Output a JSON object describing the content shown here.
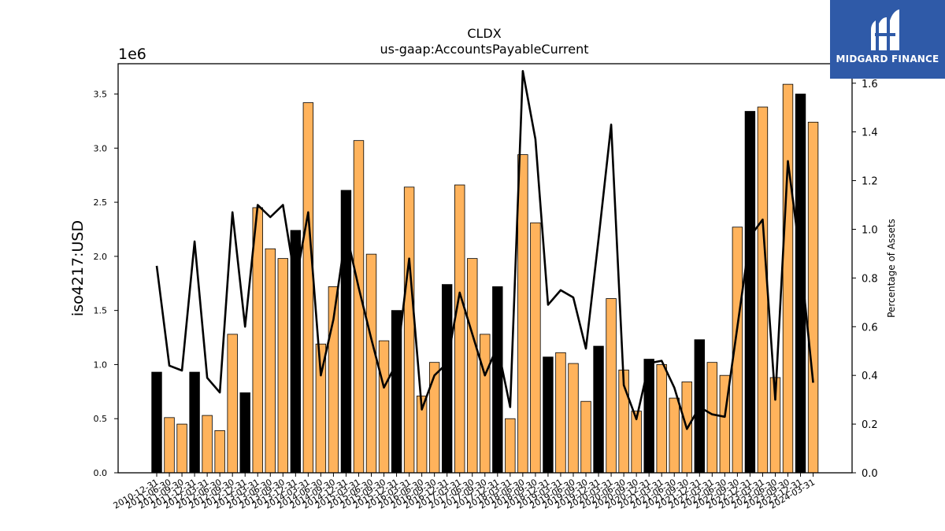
{
  "chart_data": {
    "type": "bar",
    "title": "CLDX",
    "subtitle": "us-gaap:AccountsPayableCurrent",
    "ylabel": "iso4217:USD",
    "y_offset_label": "1e6",
    "y2label": "Percentage of Assets",
    "ylim": [
      0,
      3.78
    ],
    "y2lim": [
      0,
      1.68
    ],
    "yticks": [
      "0.0",
      "0.5",
      "1.0",
      "1.5",
      "2.0",
      "2.5",
      "3.0",
      "3.5"
    ],
    "y2ticks": [
      "0.0",
      "0.2",
      "0.4",
      "0.6",
      "0.8",
      "1.0",
      "1.2",
      "1.4",
      "1.6"
    ],
    "grid": false,
    "categories": [
      "2010-12-31",
      "2011-06-30",
      "2011-09-30",
      "2011-12-31",
      "2012-03-31",
      "2012-06-30",
      "2012-09-30",
      "2012-12-31",
      "2013-03-31",
      "2013-06-30",
      "2013-09-30",
      "2013-12-31",
      "2014-03-31",
      "2014-06-30",
      "2014-09-30",
      "2014-12-31",
      "2015-03-31",
      "2015-06-30",
      "2015-09-30",
      "2015-12-31",
      "2016-03-31",
      "2016-06-30",
      "2016-09-30",
      "2016-12-31",
      "2017-03-31",
      "2017-06-30",
      "2017-09-30",
      "2017-12-31",
      "2018-03-31",
      "2018-06-30",
      "2018-09-30",
      "2018-12-31",
      "2019-03-31",
      "2019-06-30",
      "2019-09-30",
      "2019-12-31",
      "2020-03-31",
      "2020-06-30",
      "2020-09-30",
      "2020-12-31",
      "2021-03-31",
      "2021-06-30",
      "2021-09-30",
      "2021-12-31",
      "2022-03-31",
      "2022-06-30",
      "2022-09-30",
      "2022-12-31",
      "2023-03-31",
      "2023-06-30",
      "2023-09-30",
      "2023-12-31",
      "2024-03-31"
    ],
    "values": [
      0.93,
      0.51,
      0.45,
      0.93,
      0.53,
      0.39,
      1.28,
      0.74,
      2.45,
      2.07,
      1.98,
      2.24,
      3.42,
      1.19,
      1.72,
      2.61,
      3.07,
      2.02,
      1.22,
      1.5,
      2.64,
      0.71,
      1.02,
      1.74,
      2.66,
      1.98,
      1.28,
      1.72,
      0.5,
      2.94,
      2.31,
      1.07,
      1.11,
      1.01,
      0.66,
      1.17,
      1.61,
      0.95,
      0.57,
      1.05,
      1.0,
      0.69,
      0.84,
      1.23,
      1.02,
      0.9,
      2.27,
      3.34,
      3.38,
      0.88,
      3.59,
      3.5,
      3.24
    ],
    "highlight_year_end": [
      true,
      false,
      false,
      true,
      false,
      false,
      false,
      true,
      false,
      false,
      false,
      true,
      false,
      false,
      false,
      true,
      false,
      false,
      false,
      true,
      false,
      false,
      false,
      true,
      false,
      false,
      false,
      true,
      false,
      false,
      false,
      true,
      false,
      false,
      false,
      true,
      false,
      false,
      false,
      true,
      false,
      false,
      false,
      true,
      false,
      false,
      false,
      true,
      false,
      false,
      false,
      true,
      false
    ],
    "line_series": {
      "name": "Percentage of Assets",
      "values": [
        0.85,
        0.44,
        0.42,
        0.95,
        0.39,
        0.33,
        1.07,
        0.6,
        1.1,
        1.05,
        1.1,
        0.78,
        1.07,
        0.4,
        0.63,
        0.99,
        0.76,
        0.55,
        0.35,
        0.45,
        0.88,
        0.26,
        0.4,
        0.45,
        0.74,
        0.57,
        0.4,
        0.52,
        0.27,
        1.65,
        1.37,
        0.69,
        0.75,
        0.72,
        0.51,
        0.96,
        1.43,
        0.36,
        0.22,
        0.45,
        0.46,
        0.35,
        0.18,
        0.27,
        0.24,
        0.23,
        0.6,
        0.97,
        1.04,
        0.3,
        1.28,
        0.88,
        0.37
      ]
    },
    "colors": {
      "bar": "#ffb35c",
      "bar_highlight": "#000000",
      "bar_edge": "#000000",
      "line": "#000000"
    }
  },
  "logo": {
    "text": "MIDGARD FINANCE",
    "background": "#2f5aa8"
  }
}
